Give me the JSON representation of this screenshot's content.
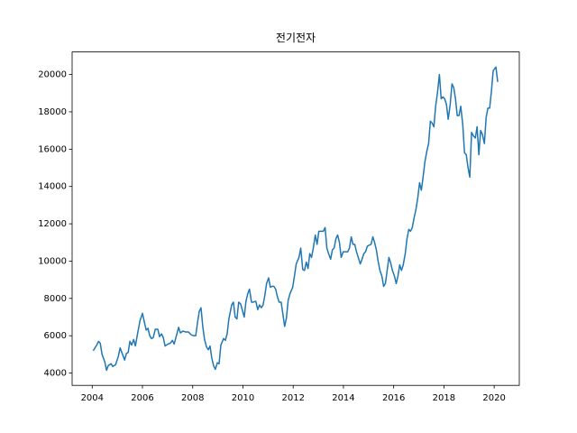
{
  "chart_data": {
    "type": "line",
    "title": "전기전자",
    "color": "#1f77b4",
    "x": [
      2004.04,
      2004.18,
      2004.25,
      2004.32,
      2004.39,
      2004.5,
      2004.57,
      2004.64,
      2004.75,
      2004.82,
      2004.93,
      2005.04,
      2005.11,
      2005.18,
      2005.29,
      2005.36,
      2005.43,
      2005.5,
      2005.57,
      2005.65,
      2005.72,
      2005.79,
      2005.9,
      2006.0,
      2006.08,
      2006.15,
      2006.22,
      2006.29,
      2006.36,
      2006.43,
      2006.51,
      2006.61,
      2006.68,
      2006.76,
      2006.83,
      2006.9,
      2007.01,
      2007.11,
      2007.19,
      2007.26,
      2007.36,
      2007.44,
      2007.51,
      2007.61,
      2007.72,
      2007.83,
      2007.94,
      2008.04,
      2008.12,
      2008.19,
      2008.26,
      2008.33,
      2008.4,
      2008.47,
      2008.55,
      2008.62,
      2008.69,
      2008.76,
      2008.83,
      2008.9,
      2008.98,
      2009.05,
      2009.12,
      2009.23,
      2009.3,
      2009.37,
      2009.44,
      2009.55,
      2009.62,
      2009.69,
      2009.76,
      2009.83,
      2009.91,
      2009.98,
      2010.05,
      2010.12,
      2010.19,
      2010.26,
      2010.34,
      2010.41,
      2010.51,
      2010.59,
      2010.66,
      2010.73,
      2010.8,
      2010.87,
      2010.94,
      2011.02,
      2011.09,
      2011.16,
      2011.23,
      2011.3,
      2011.37,
      2011.44,
      2011.52,
      2011.59,
      2011.66,
      2011.73,
      2011.8,
      2011.87,
      2011.98,
      2012.05,
      2012.12,
      2012.23,
      2012.3,
      2012.38,
      2012.45,
      2012.52,
      2012.59,
      2012.66,
      2012.73,
      2012.8,
      2012.88,
      2012.95,
      2013.02,
      2013.13,
      2013.2,
      2013.27,
      2013.34,
      2013.41,
      2013.49,
      2013.56,
      2013.63,
      2013.7,
      2013.77,
      2013.84,
      2013.91,
      2013.99,
      2014.06,
      2014.17,
      2014.24,
      2014.31,
      2014.38,
      2014.45,
      2014.52,
      2014.59,
      2014.67,
      2014.74,
      2014.81,
      2014.88,
      2014.95,
      2015.02,
      2015.1,
      2015.17,
      2015.24,
      2015.31,
      2015.38,
      2015.45,
      2015.53,
      2015.6,
      2015.67,
      2015.74,
      2015.81,
      2015.88,
      2015.95,
      2016.03,
      2016.1,
      2016.17,
      2016.24,
      2016.31,
      2016.38,
      2016.46,
      2016.53,
      2016.6,
      2016.67,
      2016.74,
      2016.81,
      2016.89,
      2016.96,
      2017.03,
      2017.1,
      2017.17,
      2017.24,
      2017.32,
      2017.39,
      2017.46,
      2017.53,
      2017.6,
      2017.67,
      2017.74,
      2017.82,
      2017.89,
      2017.96,
      2018.03,
      2018.1,
      2018.17,
      2018.25,
      2018.32,
      2018.39,
      2018.46,
      2018.53,
      2018.6,
      2018.67,
      2018.75,
      2018.82,
      2018.89,
      2018.96,
      2019.03,
      2019.1,
      2019.18,
      2019.25,
      2019.32,
      2019.39,
      2019.46,
      2019.53,
      2019.61,
      2019.68,
      2019.75,
      2019.82,
      2019.89,
      2019.96,
      2020.07,
      2020.14
    ],
    "values": [
      5200,
      5500,
      5700,
      5600,
      5000,
      4600,
      4150,
      4400,
      4500,
      4350,
      4450,
      4900,
      5350,
      5100,
      4700,
      5050,
      5100,
      5700,
      5500,
      5800,
      5450,
      6000,
      6800,
      7200,
      6700,
      6300,
      6400,
      6000,
      5850,
      5900,
      6350,
      6350,
      5950,
      6100,
      5900,
      5450,
      5550,
      5600,
      5750,
      5550,
      6050,
      6450,
      6150,
      6250,
      6200,
      6200,
      6050,
      6000,
      6000,
      6700,
      7300,
      7500,
      6500,
      5800,
      5400,
      5250,
      5450,
      4800,
      4400,
      4200,
      4550,
      4500,
      5500,
      5850,
      5750,
      6100,
      6900,
      7650,
      7800,
      7000,
      6900,
      7800,
      7700,
      7350,
      7000,
      7850,
      8250,
      8500,
      7800,
      7800,
      7850,
      7400,
      7650,
      7500,
      7650,
      8150,
      8800,
      9100,
      8600,
      8650,
      8650,
      8500,
      8100,
      7800,
      7800,
      7150,
      6500,
      6950,
      7900,
      8250,
      8600,
      9200,
      9850,
      10200,
      10700,
      9550,
      9500,
      9950,
      9600,
      10400,
      10200,
      10700,
      11400,
      10900,
      11600,
      11600,
      11600,
      11800,
      10700,
      10400,
      10100,
      10600,
      10700,
      11200,
      11400,
      11000,
      10200,
      10500,
      10500,
      10500,
      10700,
      11300,
      10900,
      10900,
      10500,
      10200,
      9850,
      10100,
      10400,
      10500,
      10800,
      10850,
      10900,
      11300,
      11000,
      10600,
      10000,
      9500,
      9200,
      8650,
      8800,
      9500,
      10200,
      9900,
      9500,
      9200,
      8800,
      9200,
      9800,
      9500,
      9800,
      10400,
      11200,
      11700,
      11600,
      11800,
      12300,
      12800,
      13400,
      14200,
      13800,
      14500,
      15300,
      15900,
      16300,
      17500,
      17400,
      17200,
      18300,
      19000,
      20000,
      18700,
      18800,
      18700,
      18400,
      17600,
      18400,
      19500,
      19300,
      18700,
      17800,
      17800,
      18300,
      17300,
      15800,
      15700,
      15000,
      14500,
      16900,
      16700,
      16600,
      17200,
      15700,
      17000,
      16800,
      16300,
      17700,
      18200,
      18200,
      19100,
      20200,
      20400,
      19600
    ],
    "xlim": [
      2003.2,
      2021.0
    ],
    "xticks": [
      2004,
      2006,
      2008,
      2010,
      2012,
      2014,
      2016,
      2018,
      2020
    ],
    "ylim": [
      3340,
      21210
    ],
    "yticks": [
      4000,
      6000,
      8000,
      10000,
      12000,
      14000,
      16000,
      18000,
      20000
    ]
  }
}
